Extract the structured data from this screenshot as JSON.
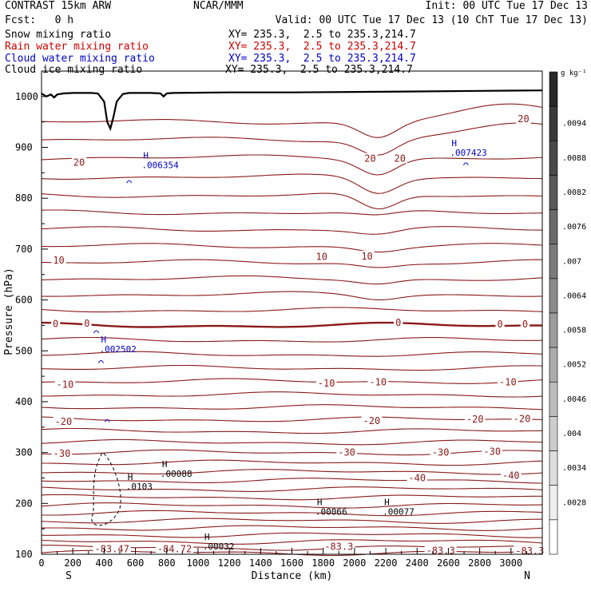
{
  "header": {
    "title": "CONTRAST 15km ARW",
    "center": "NCAR/MMM",
    "init": "Init: 00 UTC Tue 17 Dec 13",
    "fcst": "Fcst:   0 h",
    "valid": "Valid: 00 UTC Tue 17 Dec 13 (10 ChT Tue 17 Dec 13)"
  },
  "fields": [
    {
      "name": "Snow mixing ratio",
      "xy": "XY= 235.3,  2.5 to 235.3,214.7",
      "color": "#000000"
    },
    {
      "name": "Rain water mixing ratio",
      "xy": "XY= 235.3,  2.5 to 235.3,214.7",
      "color": "#cc0000"
    },
    {
      "name": "Cloud water mixing ratio",
      "xy": "XY= 235.3,  2.5 to 235.3,214.7",
      "color": "#0000cc"
    },
    {
      "name": "Cloud ice mixing ratio",
      "xy": "XY= 235.3,  2.5 to 235.3,214.7",
      "color": "#000000"
    }
  ],
  "chart_data": {
    "type": "line",
    "xlabel": "Distance (km)",
    "ylabel": "Pressure (hPa)",
    "xlim": [
      0,
      3200
    ],
    "ylim": [
      1050,
      100
    ],
    "x_ticks": [
      0,
      200,
      400,
      600,
      800,
      1000,
      1200,
      1400,
      1600,
      1800,
      2000,
      2200,
      2400,
      2600,
      2800,
      3000
    ],
    "y_ticks": [
      200,
      300,
      400,
      500,
      600,
      700,
      800,
      900,
      1000
    ],
    "y_top_label": "100",
    "x_end_labels": {
      "left": "S",
      "right": "N"
    },
    "colorbar": {
      "unit": "g kg⁻¹",
      "labels": [
        ".0094",
        ".0088",
        ".0082",
        ".0076",
        ".007",
        ".0064",
        ".0058",
        ".0052",
        ".0046",
        ".004",
        ".0034",
        ".0028"
      ]
    },
    "temperature_labels": [
      {
        "text": "-83.47",
        "x": 450,
        "p": 110
      },
      {
        "text": "-84.72",
        "x": 850,
        "p": 110
      },
      {
        "text": "-83.3",
        "x": 1900,
        "p": 115
      },
      {
        "text": "-83.3",
        "x": 2550,
        "p": 107
      },
      {
        "text": "-83.3",
        "x": 3120,
        "p": 106
      },
      {
        "text": "-40",
        "x": 2400,
        "p": 250
      },
      {
        "text": "-40",
        "x": 3000,
        "p": 255
      },
      {
        "text": "-30",
        "x": 130,
        "p": 298
      },
      {
        "text": "-30",
        "x": 1950,
        "p": 300
      },
      {
        "text": "-30",
        "x": 2550,
        "p": 300
      },
      {
        "text": "-30",
        "x": 2880,
        "p": 302
      },
      {
        "text": "-20",
        "x": 140,
        "p": 361
      },
      {
        "text": "-20",
        "x": 2110,
        "p": 362
      },
      {
        "text": "-20",
        "x": 2770,
        "p": 365
      },
      {
        "text": "-20",
        "x": 3070,
        "p": 366
      },
      {
        "text": "-10",
        "x": 1820,
        "p": 436
      },
      {
        "text": "-10",
        "x": 2150,
        "p": 438
      },
      {
        "text": "-10",
        "x": 2980,
        "p": 438
      },
      {
        "text": "-10",
        "x": 150,
        "p": 434
      },
      {
        "text": "0",
        "x": 90,
        "p": 553
      },
      {
        "text": "0",
        "x": 290,
        "p": 554
      },
      {
        "text": "0",
        "x": 2280,
        "p": 555
      },
      {
        "text": "0",
        "x": 2930,
        "p": 552
      },
      {
        "text": "0",
        "x": 3090,
        "p": 552
      },
      {
        "text": "10",
        "x": 110,
        "p": 678
      },
      {
        "text": "10",
        "x": 1790,
        "p": 685
      },
      {
        "text": "10",
        "x": 2080,
        "p": 686
      },
      {
        "text": "20",
        "x": 240,
        "p": 870
      },
      {
        "text": "20",
        "x": 2100,
        "p": 878
      },
      {
        "text": "20",
        "x": 2290,
        "p": 878
      },
      {
        "text": "20",
        "x": 3080,
        "p": 956
      }
    ],
    "maxima": [
      {
        "text": ".00032",
        "x": 1030,
        "p": 122,
        "color": "#000000"
      },
      {
        "text": ".00066",
        "x": 1750,
        "p": 190,
        "color": "#000000"
      },
      {
        "text": ".00077",
        "x": 2180,
        "p": 190,
        "color": "#000000"
      },
      {
        "text": ".0103",
        "x": 540,
        "p": 240,
        "color": "#000000"
      },
      {
        "text": ".00088",
        "x": 760,
        "p": 265,
        "color": "#000000"
      },
      {
        "text": ".002502",
        "x": 370,
        "p": 510,
        "color": "#0000cc"
      },
      {
        "text": ".006354",
        "x": 640,
        "p": 872,
        "color": "#0000cc"
      },
      {
        "text": ".007423",
        "x": 2610,
        "p": 896,
        "color": "#0000cc"
      }
    ]
  }
}
